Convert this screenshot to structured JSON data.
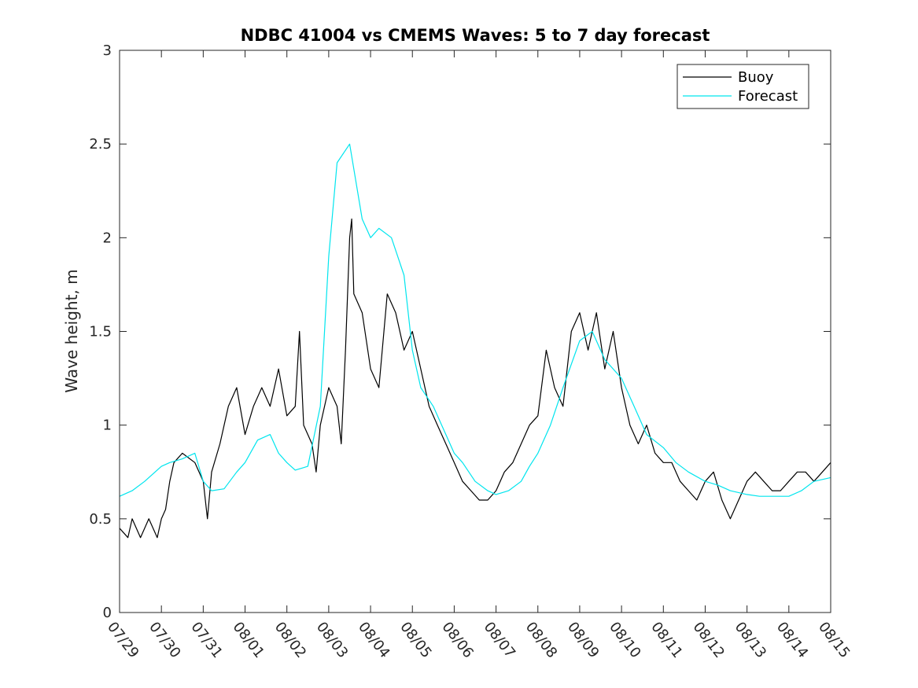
{
  "chart_data": {
    "type": "line",
    "title": "NDBC 41004 vs CMEMS Waves: 5 to 7 day forecast",
    "xlabel": "",
    "ylabel": "Wave height, m",
    "xlim": [
      "07/29",
      "08/15"
    ],
    "ylim": [
      0,
      3
    ],
    "y_ticks": [
      "0",
      "0.5",
      "1",
      "1.5",
      "2",
      "2.5",
      "3"
    ],
    "x_ticks": [
      "07/29",
      "07/30",
      "07/31",
      "08/01",
      "08/02",
      "08/03",
      "08/04",
      "08/05",
      "08/06",
      "08/07",
      "08/08",
      "08/09",
      "08/10",
      "08/11",
      "08/12",
      "08/13",
      "08/14",
      "08/15"
    ],
    "legend": {
      "placement": "top-right",
      "entries": [
        "Buoy",
        "Forecast"
      ]
    },
    "grid": false,
    "colors": {
      "buoy": "#000000",
      "forecast": "#00e5ee"
    },
    "series": [
      {
        "name": "Buoy",
        "x_days": [
          0.0,
          0.2,
          0.3,
          0.5,
          0.7,
          0.9,
          1.0,
          1.1,
          1.2,
          1.3,
          1.5,
          1.8,
          2.0,
          2.1,
          2.2,
          2.4,
          2.6,
          2.8,
          3.0,
          3.2,
          3.4,
          3.6,
          3.8,
          4.0,
          4.2,
          4.3,
          4.4,
          4.6,
          4.7,
          4.8,
          5.0,
          5.2,
          5.3,
          5.4,
          5.5,
          5.55,
          5.6,
          5.8,
          6.0,
          6.2,
          6.4,
          6.6,
          6.8,
          7.0,
          7.2,
          7.4,
          7.6,
          7.8,
          8.0,
          8.2,
          8.4,
          8.6,
          8.8,
          9.0,
          9.2,
          9.4,
          9.6,
          9.8,
          10.0,
          10.2,
          10.4,
          10.6,
          10.8,
          11.0,
          11.2,
          11.4,
          11.6,
          11.8,
          12.0,
          12.2,
          12.4,
          12.6,
          12.8,
          13.0,
          13.2,
          13.4,
          13.6,
          13.8,
          14.0,
          14.2,
          14.4,
          14.6,
          14.8,
          15.0,
          15.2,
          15.4,
          15.6,
          15.8,
          16.0,
          16.2,
          16.4,
          16.6,
          16.8,
          17.0
        ],
        "values": [
          0.45,
          0.4,
          0.5,
          0.4,
          0.5,
          0.4,
          0.5,
          0.55,
          0.7,
          0.8,
          0.85,
          0.8,
          0.7,
          0.5,
          0.75,
          0.9,
          1.1,
          1.2,
          0.95,
          1.1,
          1.2,
          1.1,
          1.3,
          1.05,
          1.1,
          1.5,
          1.0,
          0.9,
          0.75,
          1.0,
          1.2,
          1.1,
          0.9,
          1.4,
          2.0,
          2.1,
          1.7,
          1.6,
          1.3,
          1.2,
          1.7,
          1.6,
          1.4,
          1.5,
          1.3,
          1.1,
          1.0,
          0.9,
          0.8,
          0.7,
          0.65,
          0.6,
          0.6,
          0.65,
          0.75,
          0.8,
          0.9,
          1.0,
          1.05,
          1.4,
          1.2,
          1.1,
          1.5,
          1.6,
          1.4,
          1.6,
          1.3,
          1.5,
          1.2,
          1.0,
          0.9,
          1.0,
          0.85,
          0.8,
          0.8,
          0.7,
          0.65,
          0.6,
          0.7,
          0.75,
          0.6,
          0.5,
          0.6,
          0.7,
          0.75,
          0.7,
          0.65,
          0.65,
          0.7,
          0.75,
          0.75,
          0.7,
          0.75,
          0.8
        ]
      },
      {
        "name": "Forecast",
        "x_days": [
          0.0,
          0.3,
          0.6,
          1.0,
          1.2,
          1.5,
          1.8,
          2.0,
          2.2,
          2.5,
          2.8,
          3.0,
          3.3,
          3.6,
          3.8,
          4.0,
          4.2,
          4.5,
          4.8,
          5.0,
          5.2,
          5.5,
          5.8,
          6.0,
          6.2,
          6.5,
          6.8,
          7.0,
          7.2,
          7.5,
          7.8,
          8.0,
          8.2,
          8.5,
          8.8,
          9.0,
          9.3,
          9.6,
          9.8,
          10.0,
          10.3,
          10.6,
          11.0,
          11.3,
          11.6,
          12.0,
          12.3,
          12.6,
          13.0,
          13.3,
          13.6,
          14.0,
          14.3,
          14.6,
          15.0,
          15.3,
          15.6,
          16.0,
          16.3,
          16.6,
          17.0
        ],
        "values": [
          0.62,
          0.65,
          0.7,
          0.78,
          0.8,
          0.82,
          0.85,
          0.7,
          0.65,
          0.66,
          0.75,
          0.8,
          0.92,
          0.95,
          0.85,
          0.8,
          0.76,
          0.78,
          1.1,
          1.9,
          2.4,
          2.5,
          2.1,
          2.0,
          2.05,
          2.0,
          1.8,
          1.4,
          1.2,
          1.1,
          0.95,
          0.85,
          0.8,
          0.7,
          0.65,
          0.63,
          0.65,
          0.7,
          0.78,
          0.85,
          1.0,
          1.2,
          1.45,
          1.5,
          1.35,
          1.25,
          1.1,
          0.95,
          0.88,
          0.8,
          0.75,
          0.7,
          0.68,
          0.65,
          0.63,
          0.62,
          0.62,
          0.62,
          0.65,
          0.7,
          0.72
        ]
      }
    ]
  }
}
